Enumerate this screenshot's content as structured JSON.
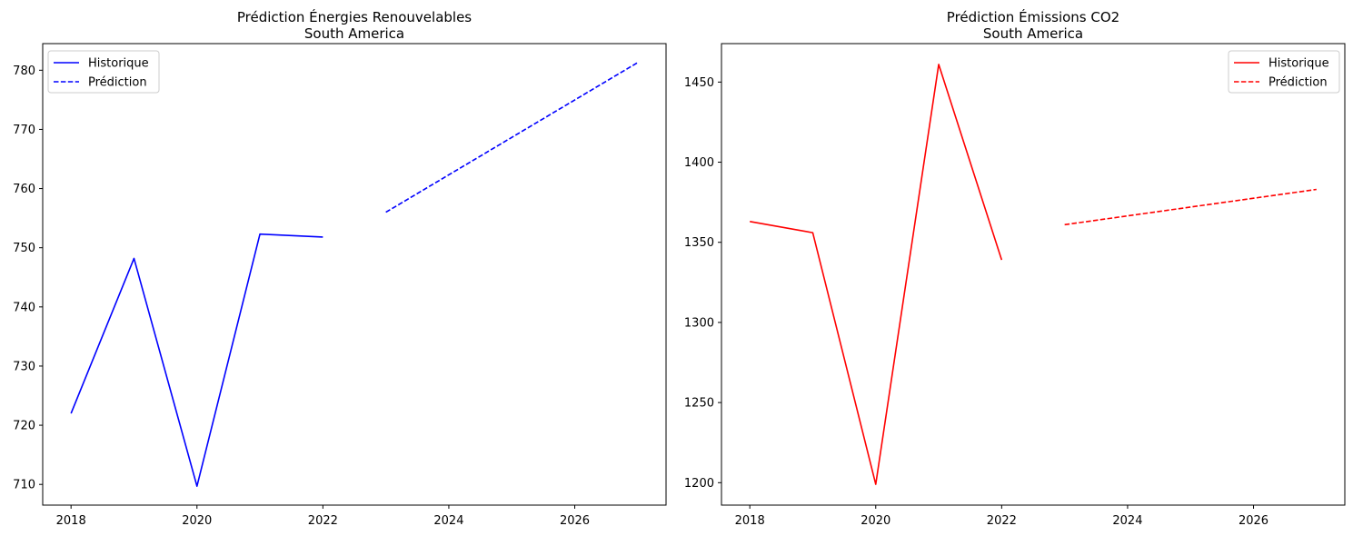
{
  "chart_data": [
    {
      "type": "line",
      "title": "Prédiction Énergies Renouvelables",
      "subtitle": "South America",
      "xlabel": "",
      "ylabel": "",
      "xlim": [
        2017.55,
        2027.45
      ],
      "ylim": [
        706.5,
        784.5
      ],
      "xticks": [
        "2018",
        "2020",
        "2022",
        "2024",
        "2026"
      ],
      "yticks": [
        "710",
        "720",
        "730",
        "740",
        "750",
        "760",
        "770",
        "780"
      ],
      "legend_position": "top-left",
      "grid": false,
      "series": [
        {
          "name": "Historique",
          "style": "solid",
          "color": "#0000ff",
          "x": [
            2018,
            2019,
            2020,
            2021,
            2022
          ],
          "y": [
            722.0,
            748.2,
            709.7,
            752.3,
            751.8
          ]
        },
        {
          "name": "Prédiction",
          "style": "dashed",
          "color": "#0000ff",
          "x": [
            2023,
            2027
          ],
          "y": [
            756.0,
            781.3
          ]
        }
      ]
    },
    {
      "type": "line",
      "title": "Prédiction Émissions CO2",
      "subtitle": "South America",
      "xlabel": "",
      "ylabel": "",
      "xlim": [
        2017.55,
        2027.45
      ],
      "ylim": [
        1186,
        1474
      ],
      "xticks": [
        "2018",
        "2020",
        "2022",
        "2024",
        "2026"
      ],
      "yticks": [
        "1200",
        "1250",
        "1300",
        "1350",
        "1400",
        "1450"
      ],
      "legend_position": "top-right",
      "grid": false,
      "series": [
        {
          "name": "Historique",
          "style": "solid",
          "color": "#ff0000",
          "x": [
            2018,
            2019,
            2020,
            2021,
            2022
          ],
          "y": [
            1363,
            1356,
            1199,
            1461,
            1339
          ]
        },
        {
          "name": "Prédiction",
          "style": "dashed",
          "color": "#ff0000",
          "x": [
            2023,
            2027
          ],
          "y": [
            1361,
            1383
          ]
        }
      ]
    }
  ]
}
